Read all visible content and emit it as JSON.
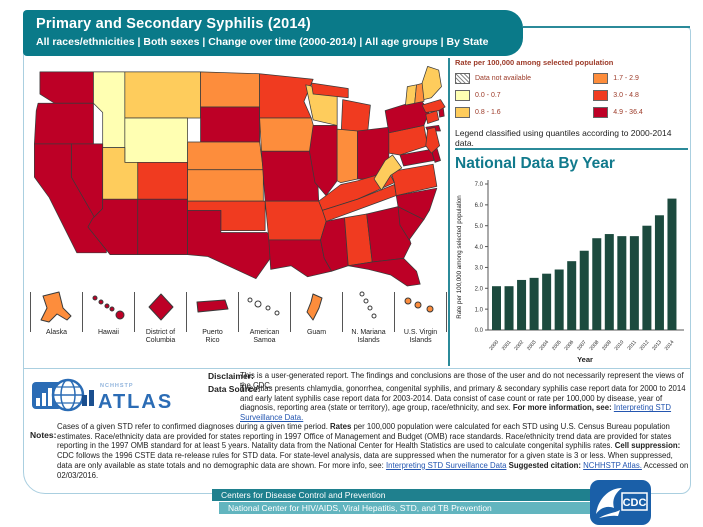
{
  "header": {
    "title": "Primary and Secondary Syphilis (2014)",
    "subtitle": "All races/ethnicities | Both sexes | Change over time (2000-2014) | All age groups | By State"
  },
  "legend": {
    "title": "Rate per 100,000 among selected population",
    "note": "Legend classified using quantiles according to 2000-2014 data.",
    "classes": [
      {
        "key": "na",
        "label": "Data not available",
        "type": "hatch"
      },
      {
        "key": "q1",
        "label": "0.0 - 0.7",
        "color": "#ffffb2"
      },
      {
        "key": "q2",
        "label": "0.8 - 1.6",
        "color": "#fecc5c"
      },
      {
        "key": "q3",
        "label": "1.7 - 2.9",
        "color": "#fd8d3c"
      },
      {
        "key": "q4",
        "label": "3.0 - 4.8",
        "color": "#f03b20"
      },
      {
        "key": "q5",
        "label": "4.9 - 36.4",
        "color": "#bd0026"
      }
    ]
  },
  "chart_section": {
    "title": "National Data By Year"
  },
  "chart_data": [
    {
      "type": "bar",
      "title": "National Data By Year",
      "x": [
        "2000",
        "2001",
        "2002",
        "2003",
        "2004",
        "2005",
        "2006",
        "2007",
        "2008",
        "2009",
        "2010",
        "2011",
        "2012",
        "2013",
        "2014"
      ],
      "values": [
        2.1,
        2.1,
        2.4,
        2.5,
        2.7,
        2.9,
        3.3,
        3.8,
        4.4,
        4.6,
        4.5,
        4.5,
        5.0,
        5.5,
        6.3
      ],
      "xlabel": "Year",
      "ylabel": "Rate per 100,000 among selected population",
      "ylim": [
        0,
        7
      ],
      "ytick_step": 1,
      "grid": false,
      "legend_position": "none"
    },
    {
      "type": "choropleth",
      "title": "Primary and Secondary Syphilis (2014), rate per 100,000 by state",
      "class_labels": {
        "na": "Data not available",
        "q1": "0.0 - 0.7",
        "q2": "0.8 - 1.6",
        "q3": "1.7 - 2.9",
        "q4": "3.0 - 4.8",
        "q5": "4.9 - 36.4"
      },
      "states": {
        "WA": "q5",
        "OR": "q5",
        "CA": "q5",
        "NV": "q5",
        "ID": "q1",
        "MT": "q2",
        "WY": "q1",
        "UT": "q2",
        "CO": "q4",
        "AZ": "q5",
        "NM": "q5",
        "ND": "q3",
        "SD": "q5",
        "NE": "q3",
        "KS": "q3",
        "OK": "q4",
        "TX": "q5",
        "MN": "q4",
        "IA": "q3",
        "MO": "q5",
        "WI": "q2",
        "IL": "q5",
        "MI": "q4",
        "IN": "q3",
        "OH": "q5",
        "KY": "q4",
        "TN": "q4",
        "AR": "q4",
        "LA": "q5",
        "MS": "q5",
        "AL": "q4",
        "GA": "q5",
        "FL": "q5",
        "SC": "q5",
        "NC": "q5",
        "VA": "q4",
        "WV": "q2",
        "MD": "q5",
        "DE": "q5",
        "PA": "q4",
        "NY": "q5",
        "NJ": "q4",
        "CT": "q4",
        "RI": "q5",
        "MA": "q4",
        "VT": "q2",
        "NH": "q3",
        "ME": "q2",
        "AK": "q3",
        "HI": "q5",
        "DC": "q5",
        "PR": "q5",
        "AS": "na",
        "GU": "q3",
        "MP": "na",
        "VI": "q3"
      }
    }
  ],
  "map": {
    "states": [
      {
        "id": "WA",
        "p": "14,16 72,16 72,50 30,50 14,40"
      },
      {
        "id": "OR",
        "p": "12,50 72,50 72,94 8,94 10,58"
      },
      {
        "id": "ID",
        "p": "72,16 106,16 106,98 82,98 82,60 72,50"
      },
      {
        "id": "MT",
        "p": "106,16 188,16 188,66 106,66"
      },
      {
        "id": "WY",
        "p": "106,66 174,66 174,114 106,114"
      },
      {
        "id": "NV",
        "p": "48,94 82,94 82,164 71,175 48,130"
      },
      {
        "id": "CA",
        "p": "8,94 48,94 48,130 86,196 86,212 54,212 24,152 8,130"
      },
      {
        "id": "UT",
        "p": "82,98 106,98 106,114 120,114 120,154 82,154"
      },
      {
        "id": "CO",
        "p": "120,114 174,114 174,154 120,154"
      },
      {
        "id": "AZ",
        "p": "82,154 120,154 120,214 90,214 66,184 71,175 82,164"
      },
      {
        "id": "NM",
        "p": "120,154 174,154 174,214 120,214"
      },
      {
        "id": "ND",
        "p": "188,16 252,18 252,54 188,54"
      },
      {
        "id": "SD",
        "p": "188,54 252,54 252,92 188,92"
      },
      {
        "id": "NE",
        "p": "174,92 252,92 256,122 174,122"
      },
      {
        "id": "KS",
        "p": "174,122 256,122 256,156 174,156"
      },
      {
        "id": "OK",
        "p": "174,156 258,156 258,188 210,188 210,166 174,166"
      },
      {
        "id": "TX",
        "p": "174,166 210,166 210,190 260,190 272,206 248,240 222,228 196,216 174,214"
      },
      {
        "id": "MN",
        "p": "252,18 310,24 300,48 308,66 252,66"
      },
      {
        "id": "IA",
        "p": "252,66 308,66 314,88 306,102 254,102"
      },
      {
        "id": "MO",
        "p": "254,102 306,102 314,112 316,156 258,156"
      },
      {
        "id": "WI",
        "p": "302,30 336,38 336,74 310,68"
      },
      {
        "id": "IL",
        "p": "310,74 336,74 336,134 324,150 312,136 306,102"
      },
      {
        "id": "MI",
        "p": [
          "308,28 348,34 348,44 310,40",
          "342,46 372,52 368,92 340,90"
        ]
      },
      {
        "id": "IN",
        "p": "336,78 358,80 358,132 340,136 336,134"
      },
      {
        "id": "OH",
        "p": "358,80 392,76 392,122 376,132 358,132"
      },
      {
        "id": "KY",
        "p": "316,156 340,138 358,134 392,124 398,136 358,154 320,166"
      },
      {
        "id": "TN",
        "p": "320,166 358,154 398,138 400,150 324,178"
      },
      {
        "id": "AR",
        "p": "258,156 316,156 320,166 324,178 318,198 262,198"
      },
      {
        "id": "LA",
        "p": "262,198 318,198 322,218 330,232 304,238 286,226 264,230"
      },
      {
        "id": "MS",
        "p": "324,178 344,174 348,226 330,232 322,218 318,198"
      },
      {
        "id": "AL",
        "p": "344,174 368,170 374,222 348,226"
      },
      {
        "id": "GA",
        "p": "368,170 402,162 416,202 408,218 374,222"
      },
      {
        "id": "FL",
        "p": "348,226 374,222 408,218 422,232 426,246 412,248 394,236 370,230"
      },
      {
        "id": "SC",
        "p": "402,162 430,176 414,198 404,182"
      },
      {
        "id": "NC",
        "p": "400,150 444,142 436,166 430,176 402,162"
      },
      {
        "id": "VA",
        "p": "394,124 440,116 444,140 400,150 398,136"
      },
      {
        "id": "WV",
        "p": "376,132 388,112 396,106 406,120 394,128 384,144"
      },
      {
        "id": "MD",
        "p": "404,106 438,100 441,112 408,118"
      },
      {
        "id": "DE",
        "p": "438,100 444,98 448,112 442,114"
      },
      {
        "id": "PA",
        "p": "392,82 430,74 434,96 404,106 392,104"
      },
      {
        "id": "NY",
        "p": [
          "388,58 426,46 436,58 430,74 392,82",
          "432,76 446,74 448,80 434,80"
        ]
      },
      {
        "id": "NJ",
        "p": "434,78 442,76 447,96 438,104 432,96"
      },
      {
        "id": "CT",
        "p": "432,62 444,58 446,68 434,72"
      },
      {
        "id": "RI",
        "p": "446,56 451,55 452,64 447,65"
      },
      {
        "id": "MA",
        "p": "428,52 448,46 453,54 446,58 432,60"
      },
      {
        "id": "VT",
        "p": "412,32 422,30 420,50 410,52"
      },
      {
        "id": "NH",
        "p": "422,30 430,28 430,48 420,50"
      },
      {
        "id": "ME",
        "p": "428,28 434,10 446,14 449,32 438,44 430,46"
      }
    ],
    "territories": [
      {
        "id": "AK",
        "label": [
          "Alaska"
        ],
        "type": "poly",
        "p": "8,6 24,2 28,18 36,26 32,30 22,24 14,32 6,30 12,18"
      },
      {
        "id": "HI",
        "label": [
          "Hawaii"
        ],
        "type": "dots",
        "d": [
          [
            8,
            8,
            2
          ],
          [
            14,
            12,
            2
          ],
          [
            20,
            16,
            2
          ],
          [
            25,
            19,
            2
          ],
          [
            33,
            25,
            4
          ]
        ]
      },
      {
        "id": "DC",
        "label": [
          "District of",
          "Columbia"
        ],
        "type": "poly",
        "p": "22,4 34,17 22,30 10,17"
      },
      {
        "id": "PR",
        "label": [
          "Puerto",
          "Rico"
        ],
        "type": "poly",
        "p": "6,12 34,10 37,19 7,22"
      },
      {
        "id": "AS",
        "label": [
          "American",
          "Samoa"
        ],
        "type": "dots",
        "d": [
          [
            7,
            10,
            2
          ],
          [
            15,
            14,
            3
          ],
          [
            25,
            18,
            2
          ],
          [
            34,
            23,
            2
          ]
        ]
      },
      {
        "id": "GU",
        "label": [
          "Guam"
        ],
        "type": "poly",
        "p": "18,4 27,8 24,18 18,30 12,22 16,12"
      },
      {
        "id": "MP",
        "label": [
          "N. Mariana",
          "Islands"
        ],
        "type": "dots",
        "d": [
          [
            15,
            4,
            2
          ],
          [
            19,
            11,
            2
          ],
          [
            23,
            18,
            2
          ],
          [
            27,
            26,
            2
          ]
        ]
      },
      {
        "id": "VI",
        "label": [
          "U.S. Virgin",
          "Islands"
        ],
        "type": "dots",
        "d": [
          [
            9,
            11,
            3
          ],
          [
            19,
            15,
            3
          ],
          [
            31,
            19,
            3
          ]
        ]
      }
    ]
  },
  "footer": {
    "disclaimer_label": "Disclaimer:",
    "disclaimer_text": "This is a user-generated report. The findings and conclusions are those of the user and do not necessarily represent the views of the CDC.",
    "datasource_label": "Data Source:",
    "datasource_segments": [
      {
        "t": "The Atlas presents chlamydia, gonorrhea, congenital syphilis, and primary & secondary syphilis case report data for 2000 to 2014 and early latent syphilis case report data for 2003-2014. Data consist of case count or rate per 100,000 by disease, year of diagnosis, reporting area (state or territory), age group, race/ethnicity, and sex. "
      },
      {
        "t": "For more information, see: ",
        "b": true
      },
      {
        "t": "Interpreting STD Surveillance Data.",
        "l": true
      }
    ],
    "notes_label": "Notes:",
    "notes_segments": [
      {
        "t": "Cases of a given STD refer to confirmed diagnoses during a given time period. "
      },
      {
        "t": "Rates",
        "b": true
      },
      {
        "t": " per 100,000 population were calculated for each STD using U.S. Census Bureau population estimates. Race/ethnicity data are provided for states reporting in 1997 Office of Management and Budget (OMB) race standards. Race/ethnicity trend data are provided for states reporting in the 1997 OMB standard for at least 5 years. Natality data from the National Center for Health Statistics are used to calculate congenital syphilis rates. "
      },
      {
        "t": "Cell suppression:",
        "b": true
      },
      {
        "t": " CDC follows the 1996 CSTE data re-release rules for STD data. For state-level analysis, data are suppressed when the numerator for a given state is 3 or less. When suppressed, data are only available as state totals and no demographic data are shown. For more info, see: "
      },
      {
        "t": "Interpreting STD Surveillance Data",
        "l": true
      },
      {
        "t": " Suggested citation: ",
        "b": true
      },
      {
        "t": "NCHHSTP Atlas.",
        "l": true
      },
      {
        "t": " Accessed on 02/03/2016."
      }
    ],
    "bar1": "Centers for Disease Control and Prevention",
    "bar2": "National Center for HIV/AIDS, Viral Hepatitis, STD, and TB Prevention"
  },
  "logos": {
    "atlas_top": "NCHHSTP",
    "atlas_main": "ATLAS",
    "cdc": "CDC"
  },
  "colors": {
    "teal_header": "#0a7a89",
    "teal_line": "#2b8a99",
    "chart_title": "#117a8c",
    "bar_fill": "#1c4a3e",
    "link": "#2456b0",
    "legend_text": "#9c3a28",
    "frame_border": "#aacfe0",
    "footer_bar1": "#1f808e",
    "footer_bar2": "#62b5bf",
    "hhs_blue": "#1a5fa8",
    "atlas_blue": "#2b6cb5",
    "map_classes": {
      "na": "#ffffff",
      "q1": "#ffffb2",
      "q2": "#fecc5c",
      "q3": "#fd8d3c",
      "q4": "#f03b20",
      "q5": "#bd0026"
    }
  }
}
